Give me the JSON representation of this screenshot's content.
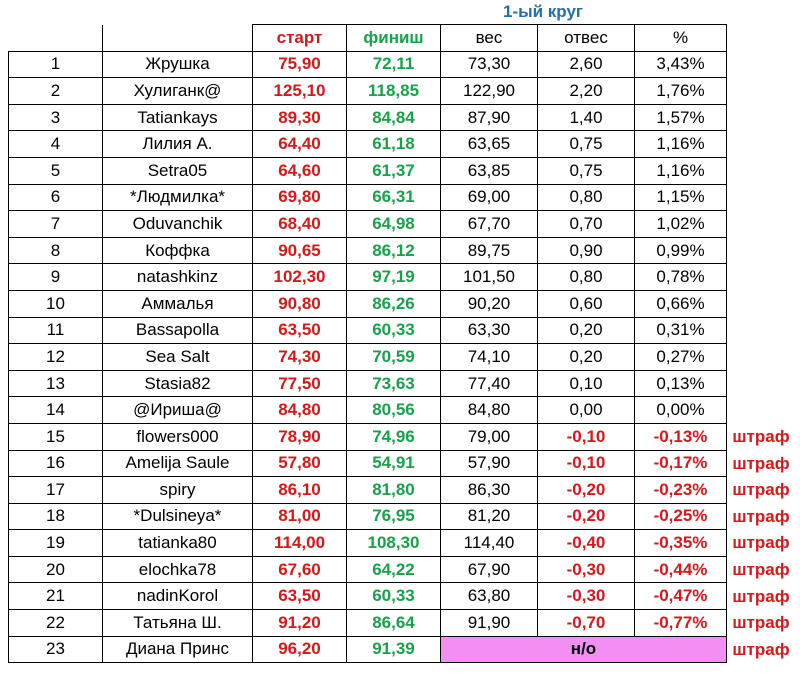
{
  "title": "1-ый круг",
  "headers": {
    "start": "старт",
    "finish": "финиш",
    "weight": "вес",
    "drop": "отвес",
    "percent": "%"
  },
  "rows": [
    {
      "num": "1",
      "name": "Жрушка",
      "start": "75,90",
      "finish": "72,11",
      "weight": "73,30",
      "drop": "2,60",
      "percent": "3,43%",
      "neg": false,
      "penalty": ""
    },
    {
      "num": "2",
      "name": "Хулиганк@",
      "start": "125,10",
      "finish": "118,85",
      "weight": "122,90",
      "drop": "2,20",
      "percent": "1,76%",
      "neg": false,
      "penalty": ""
    },
    {
      "num": "3",
      "name": "Tatiankays",
      "start": "89,30",
      "finish": "84,84",
      "weight": "87,90",
      "drop": "1,40",
      "percent": "1,57%",
      "neg": false,
      "penalty": ""
    },
    {
      "num": "4",
      "name": "Лилия А.",
      "start": "64,40",
      "finish": "61,18",
      "weight": "63,65",
      "drop": "0,75",
      "percent": "1,16%",
      "neg": false,
      "penalty": ""
    },
    {
      "num": "5",
      "name": "Setra05",
      "start": "64,60",
      "finish": "61,37",
      "weight": "63,85",
      "drop": "0,75",
      "percent": "1,16%",
      "neg": false,
      "penalty": ""
    },
    {
      "num": "6",
      "name": "*Людмилка*",
      "start": "69,80",
      "finish": "66,31",
      "weight": "69,00",
      "drop": "0,80",
      "percent": "1,15%",
      "neg": false,
      "penalty": ""
    },
    {
      "num": "7",
      "name": "Oduvanchik",
      "start": "68,40",
      "finish": "64,98",
      "weight": "67,70",
      "drop": "0,70",
      "percent": "1,02%",
      "neg": false,
      "penalty": ""
    },
    {
      "num": "8",
      "name": "Коффка",
      "start": "90,65",
      "finish": "86,12",
      "weight": "89,75",
      "drop": "0,90",
      "percent": "0,99%",
      "neg": false,
      "penalty": ""
    },
    {
      "num": "9",
      "name": "natashkinz",
      "start": "102,30",
      "finish": "97,19",
      "weight": "101,50",
      "drop": "0,80",
      "percent": "0,78%",
      "neg": false,
      "penalty": ""
    },
    {
      "num": "10",
      "name": "Аммалья",
      "start": "90,80",
      "finish": "86,26",
      "weight": "90,20",
      "drop": "0,60",
      "percent": "0,66%",
      "neg": false,
      "penalty": ""
    },
    {
      "num": "11",
      "name": "Bassapolla",
      "start": "63,50",
      "finish": "60,33",
      "weight": "63,30",
      "drop": "0,20",
      "percent": "0,31%",
      "neg": false,
      "penalty": ""
    },
    {
      "num": "12",
      "name": "Sea Salt",
      "start": "74,30",
      "finish": "70,59",
      "weight": "74,10",
      "drop": "0,20",
      "percent": "0,27%",
      "neg": false,
      "penalty": ""
    },
    {
      "num": "13",
      "name": "Stasia82",
      "start": "77,50",
      "finish": "73,63",
      "weight": "77,40",
      "drop": "0,10",
      "percent": "0,13%",
      "neg": false,
      "penalty": ""
    },
    {
      "num": "14",
      "name": "@Ириша@",
      "start": "84,80",
      "finish": "80,56",
      "weight": "84,80",
      "drop": "0,00",
      "percent": "0,00%",
      "neg": false,
      "penalty": ""
    },
    {
      "num": "15",
      "name": "flowers000",
      "start": "78,90",
      "finish": "74,96",
      "weight": "79,00",
      "drop": "-0,10",
      "percent": "-0,13%",
      "neg": true,
      "penalty": "штраф"
    },
    {
      "num": "16",
      "name": "Amelija Saule",
      "start": "57,80",
      "finish": "54,91",
      "weight": "57,90",
      "drop": "-0,10",
      "percent": "-0,17%",
      "neg": true,
      "penalty": "штраф"
    },
    {
      "num": "17",
      "name": "spiry",
      "start": "86,10",
      "finish": "81,80",
      "weight": "86,30",
      "drop": "-0,20",
      "percent": "-0,23%",
      "neg": true,
      "penalty": "штраф"
    },
    {
      "num": "18",
      "name": "*Dulsineya*",
      "start": "81,00",
      "finish": "76,95",
      "weight": "81,20",
      "drop": "-0,20",
      "percent": "-0,25%",
      "neg": true,
      "penalty": "штраф"
    },
    {
      "num": "19",
      "name": "tatianka80",
      "start": "114,00",
      "finish": "108,30",
      "weight": "114,40",
      "drop": "-0,40",
      "percent": "-0,35%",
      "neg": true,
      "penalty": "штраф"
    },
    {
      "num": "20",
      "name": "elochka78",
      "start": "67,60",
      "finish": "64,22",
      "weight": "67,90",
      "drop": "-0,30",
      "percent": "-0,44%",
      "neg": true,
      "penalty": "штраф"
    },
    {
      "num": "21",
      "name": "nadinKorol",
      "start": "63,50",
      "finish": "60,33",
      "weight": "63,80",
      "drop": "-0,30",
      "percent": "-0,47%",
      "neg": true,
      "penalty": "штраф"
    },
    {
      "num": "22",
      "name": "Татьяна Ш.",
      "start": "91,20",
      "finish": "86,64",
      "weight": "91,90",
      "drop": "-0,70",
      "percent": "-0,77%",
      "neg": true,
      "penalty": "штраф"
    },
    {
      "num": "23",
      "name": "Диана Принс",
      "start": "96,20",
      "finish": "91,39",
      "weight": "",
      "drop": "",
      "percent": "",
      "neg": false,
      "na": "н/о",
      "penalty": "штраф"
    }
  ]
}
